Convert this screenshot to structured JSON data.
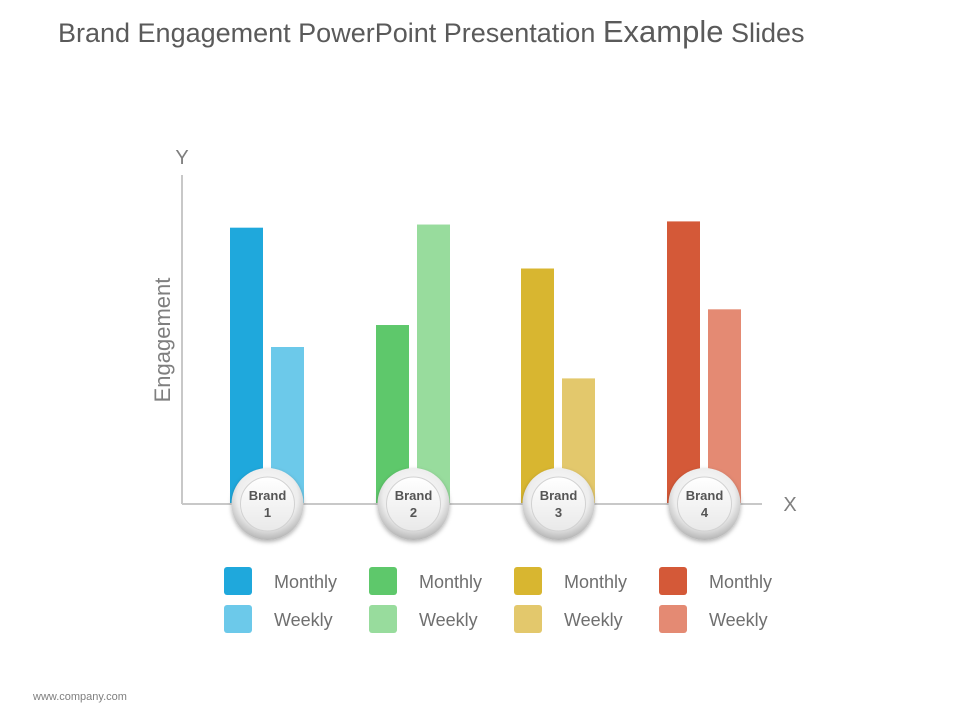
{
  "slide": {
    "title_part1": "Brand Engagement PowerPoint Presentation ",
    "title_part2": "Example",
    "title_part3": " Slides",
    "footer": "www.company.com"
  },
  "chart_data": {
    "type": "bar",
    "title": "Brand Engagement PowerPoint Presentation Example Slides",
    "xlabel": "X",
    "ylabel": "Engagement",
    "y_axis_letter": "Y",
    "ylim": [
      0,
      100
    ],
    "categories": [
      {
        "line1": "Brand",
        "line2": "1"
      },
      {
        "line1": "Brand",
        "line2": "2"
      },
      {
        "line1": "Brand",
        "line2": "3"
      },
      {
        "line1": "Brand",
        "line2": "4"
      }
    ],
    "series": [
      {
        "name": "Monthly",
        "values": [
          88,
          57,
          75,
          90
        ]
      },
      {
        "name": "Weekly",
        "values": [
          50,
          89,
          40,
          62
        ]
      }
    ],
    "grid": false,
    "legend_position": "bottom",
    "colors": {
      "monthly": [
        "#1fa8dc",
        "#5ec86b",
        "#d8b630",
        "#d45938"
      ],
      "weekly": [
        "#6cc9ea",
        "#98dc9d",
        "#e3c86c",
        "#e48a73"
      ]
    }
  }
}
